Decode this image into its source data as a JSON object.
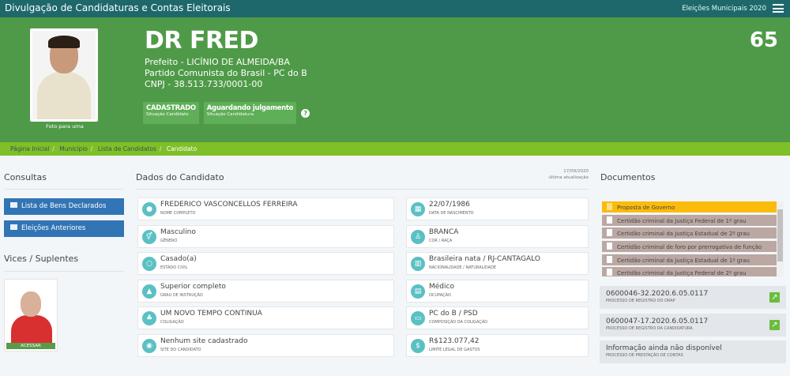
{
  "app": {
    "title": "Divulgação de Candidaturas e Contas Eleitorais",
    "election": "Eleições Municipais 2020"
  },
  "candidate": {
    "name": "DR FRED",
    "office": "Prefeito - LICÍNIO DE ALMEIDA/BA",
    "party": "Partido Comunista do Brasil - PC do B",
    "cnpj": "CNPJ - 38.513.733/0001-00",
    "number": "65",
    "photo_caption": "Foto para urna",
    "status": [
      {
        "value": "CADASTRADO",
        "label": "Situação Candidato"
      },
      {
        "value": "Aguardando julgamento",
        "label": "Situação Candidatura"
      }
    ]
  },
  "breadcrumb": [
    "Página Inicial",
    "Município",
    "Lista de Candidatos",
    "Candidato"
  ],
  "consultas": {
    "title": "Consultas",
    "buttons": [
      "Lista de Bens Declarados",
      "Eleições Anteriores"
    ]
  },
  "vices": {
    "title": "Vices / Suplentes",
    "access": "ACESSAR"
  },
  "dados": {
    "title": "Dados do Candidato",
    "updated_date": "17/09/2020",
    "updated_label": "última atualização",
    "left": [
      {
        "value": "FREDERICO VASCONCELLOS FERREIRA",
        "label": "NOME COMPLETO",
        "icon": "user-icon"
      },
      {
        "value": "Masculino",
        "label": "GÊNERO",
        "icon": "gender-icon"
      },
      {
        "value": "Casado(a)",
        "label": "ESTADO CIVIL",
        "icon": "ring-icon"
      },
      {
        "value": "Superior completo",
        "label": "GRAU DE INSTRUÇÃO",
        "icon": "graduation-cap-icon"
      },
      {
        "value": "UM NOVO TEMPO CONTINUA",
        "label": "COLIGAÇÃO",
        "icon": "group-icon"
      },
      {
        "value": "Nenhum site cadastrado",
        "label": "SITE DO CANDIDATO",
        "icon": "globe-icon"
      }
    ],
    "right": [
      {
        "value": "22/07/1986",
        "label": "DATA DE NASCIMENTO",
        "icon": "calendar-icon"
      },
      {
        "value": "BRANCA",
        "label": "COR / RAÇA",
        "icon": "person-icon"
      },
      {
        "value": "Brasileira nata / RJ-CANTAGALO",
        "label": "NACIONALIDADE / NATURALIDADE",
        "icon": "map-icon"
      },
      {
        "value": "Médico",
        "label": "OCUPAÇÃO",
        "icon": "institution-icon"
      },
      {
        "value": "PC do B / PSD",
        "label": "COMPOSIÇÃO DA COLIGAÇÃO",
        "icon": "folder-icon"
      },
      {
        "value": "R$123.077,42",
        "label": "LIMITE LEGAL DE GASTOS",
        "icon": "dollar-icon"
      }
    ]
  },
  "documentos": {
    "title": "Documentos",
    "items": [
      "Proposta de Governo",
      "Certidão criminal da Justiça Federal de 1º grau",
      "Certidão criminal da Justiça Estadual de 2º grau",
      "Certidão criminal de foro por prerrogativa de função",
      "Certidão criminal da Justiça Estadual de 1º grau",
      "Certidão criminal da Justiça Federal de 2º grau"
    ],
    "processos": [
      {
        "value": "0600046-32.2020.6.05.0117",
        "label": "PROCESSO DE REGISTRO DO DRAP"
      },
      {
        "value": "0600047-17.2020.6.05.0117",
        "label": "PROCESSO DE REGISTRO DA CANDIDATURA"
      },
      {
        "value": "Informação ainda não disponível",
        "label": "PROCESSO DE PRESTAÇÃO DE CONTAS"
      }
    ]
  },
  "colors": {
    "topbar": "#1e686c",
    "hero": "#4f9a48",
    "breadcrumb": "#7fbf27",
    "button": "#3275b5",
    "icon": "#5bc0c4",
    "highlight": "#fbbb0d"
  }
}
